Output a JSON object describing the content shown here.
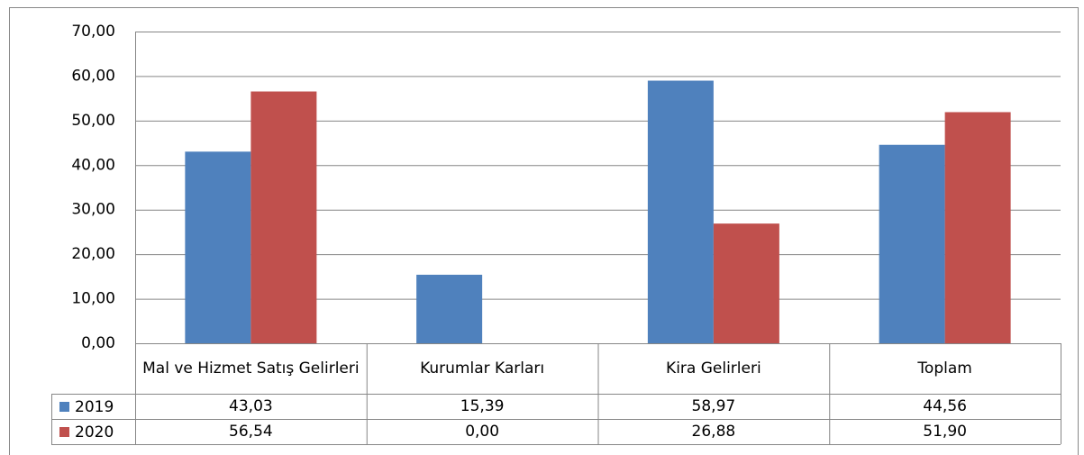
{
  "chart_data": {
    "type": "bar",
    "categories": [
      "Mal ve Hizmet Satış Gelirleri",
      "Kurumlar Karları",
      "Kira Gelirleri",
      "Toplam"
    ],
    "series": [
      {
        "name": "2019",
        "color": "#4f81bd",
        "values": [
          43.03,
          15.39,
          58.97,
          44.56
        ],
        "value_labels": [
          "43,03",
          "15,39",
          "58,97",
          "44,56"
        ]
      },
      {
        "name": "2020",
        "color": "#c0504d",
        "values": [
          56.54,
          0,
          26.88,
          51.9
        ],
        "value_labels": [
          "56,54",
          "0,00",
          "26,88",
          "51,90"
        ]
      }
    ],
    "ylim": [
      0,
      70
    ],
    "yticks": [
      {
        "value": 0,
        "label": "0,00"
      },
      {
        "value": 10,
        "label": "10,00"
      },
      {
        "value": 20,
        "label": "20,00"
      },
      {
        "value": 30,
        "label": "30,00"
      },
      {
        "value": 40,
        "label": "40,00"
      },
      {
        "value": 50,
        "label": "50,00"
      },
      {
        "value": 60,
        "label": "60,00"
      },
      {
        "value": 70,
        "label": "70,00"
      }
    ],
    "grid": true,
    "data_table": true
  }
}
